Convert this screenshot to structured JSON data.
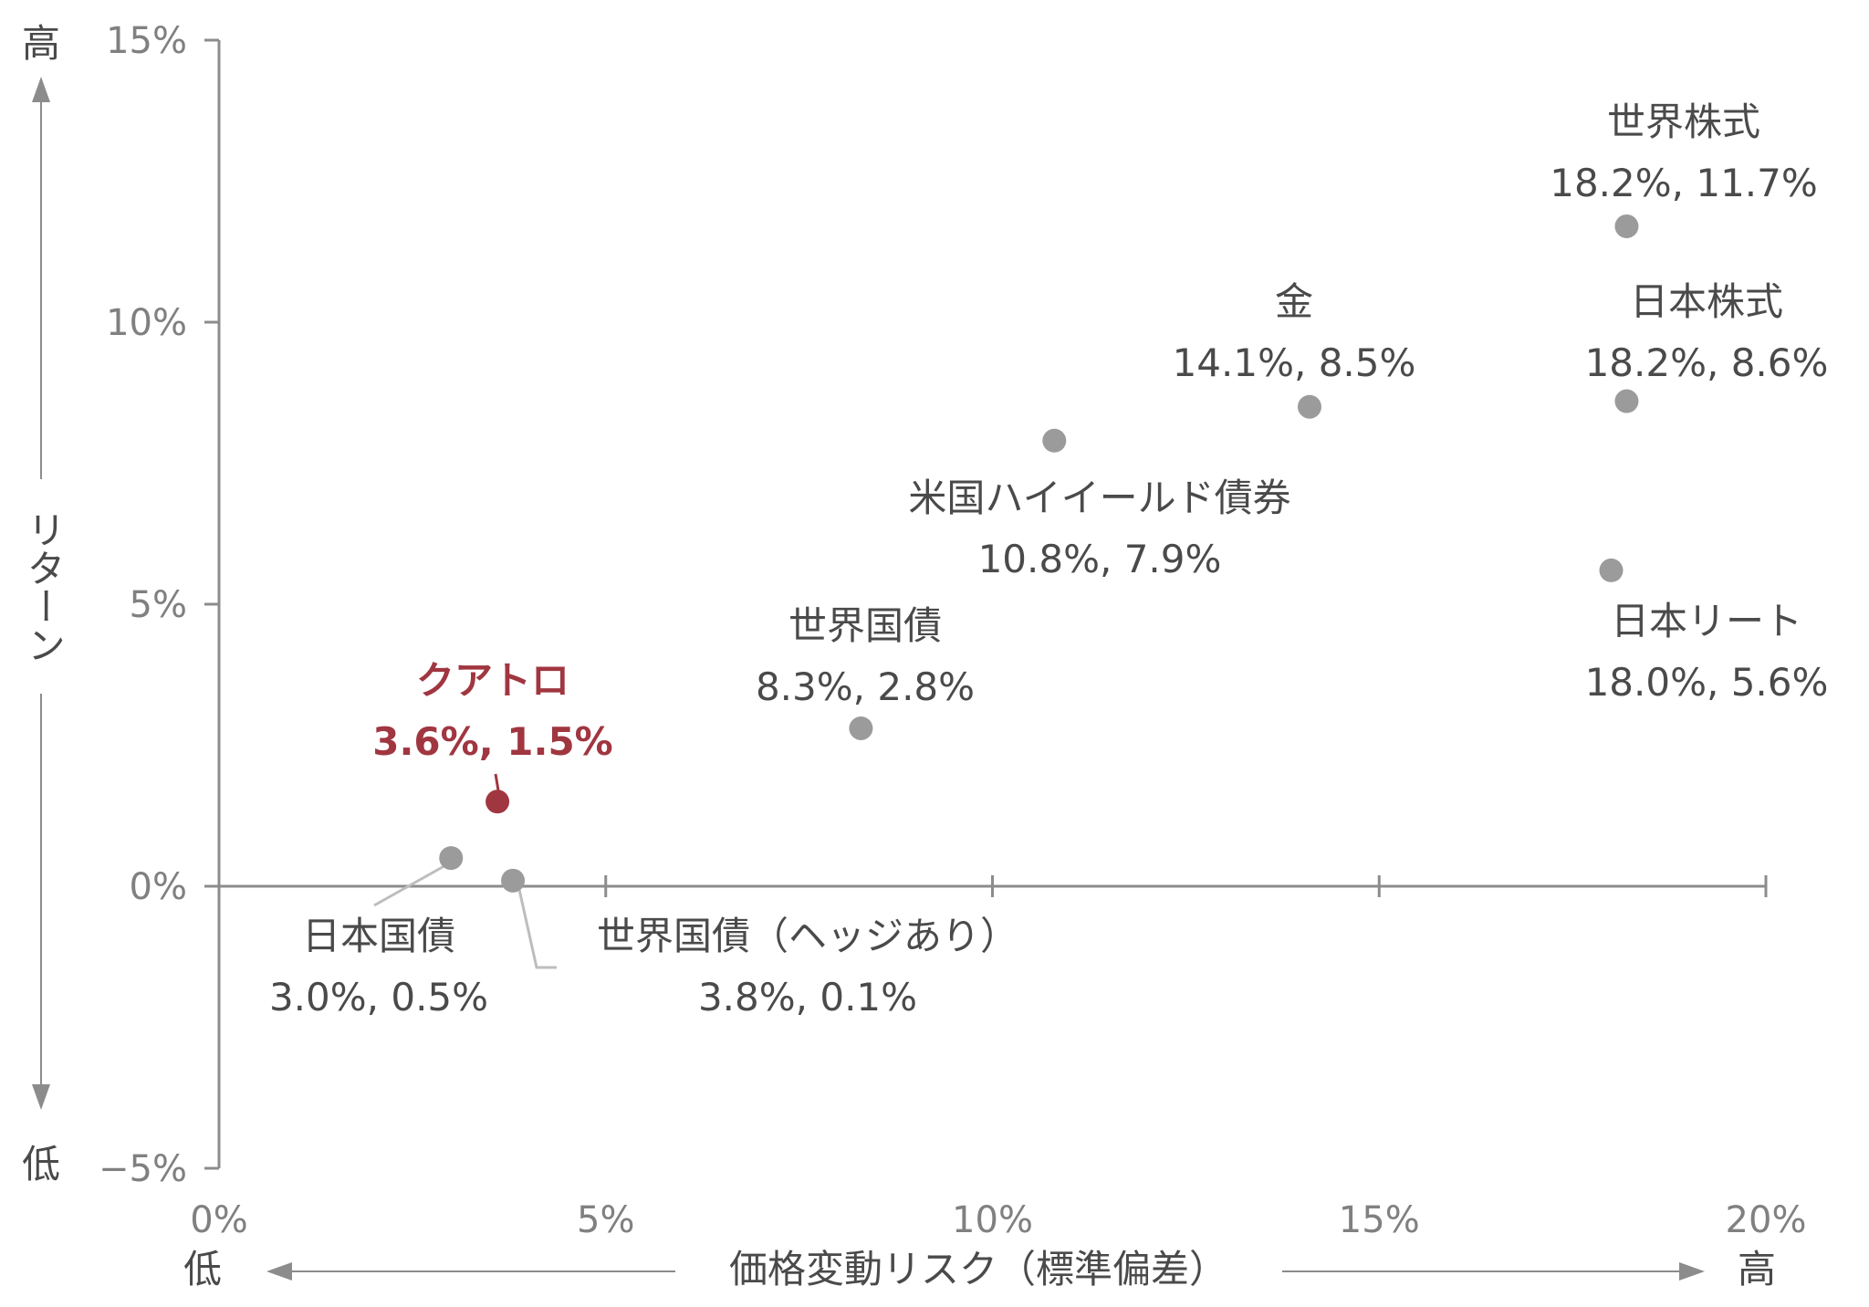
{
  "chart_data": {
    "type": "scatter",
    "title": "",
    "xlabel": "価格変動リスク（標準偏差）",
    "ylabel": "リターン",
    "x_low_label": "低",
    "x_high_label": "高",
    "y_high_label": "高",
    "y_low_label": "低",
    "xlim": [
      0,
      20
    ],
    "ylim": [
      -5,
      15
    ],
    "x_ticks": [
      "0%",
      "5%",
      "10%",
      "15%",
      "20%"
    ],
    "y_ticks": [
      "15%",
      "10%",
      "5%",
      "0%",
      "−5%"
    ],
    "grid": false,
    "highlight_color": "#a03640",
    "point_color": "#9b9b9b",
    "axis_color": "#8c8c8c",
    "points": [
      {
        "name": "クアトロ",
        "x": 3.6,
        "y": 1.5,
        "label": "3.6%, 1.5%",
        "highlight": true
      },
      {
        "name": "日本国債",
        "x": 3.0,
        "y": 0.5,
        "label": "3.0%, 0.5%",
        "highlight": false
      },
      {
        "name": "世界国債（ヘッジあり）",
        "x": 3.8,
        "y": 0.1,
        "label": "3.8%, 0.1%",
        "highlight": false
      },
      {
        "name": "世界国債",
        "x": 8.3,
        "y": 2.8,
        "label": "8.3%, 2.8%",
        "highlight": false
      },
      {
        "name": "米国ハイイールド債券",
        "x": 10.8,
        "y": 7.9,
        "label": "10.8%, 7.9%",
        "highlight": false
      },
      {
        "name": "金",
        "x": 14.1,
        "y": 8.5,
        "label": "14.1%, 8.5%",
        "highlight": false
      },
      {
        "name": "世界株式",
        "x": 18.2,
        "y": 11.7,
        "label": "18.2%, 11.7%",
        "highlight": false
      },
      {
        "name": "日本株式",
        "x": 18.2,
        "y": 8.6,
        "label": "18.2%, 8.6%",
        "highlight": false
      },
      {
        "name": "日本リート",
        "x": 18.0,
        "y": 5.6,
        "label": "18.0%, 5.6%",
        "highlight": false
      }
    ]
  }
}
